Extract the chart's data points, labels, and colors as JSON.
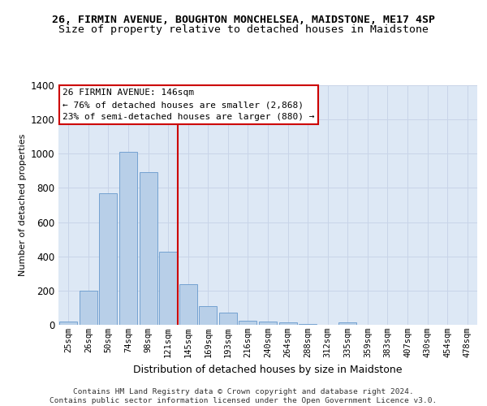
{
  "title": "26, FIRMIN AVENUE, BOUGHTON MONCHELSEA, MAIDSTONE, ME17 4SP",
  "subtitle": "Size of property relative to detached houses in Maidstone",
  "xlabel": "Distribution of detached houses by size in Maidstone",
  "ylabel": "Number of detached properties",
  "bar_color": "#b8cfe8",
  "bar_edge_color": "#6699cc",
  "background_color": "#dde8f5",
  "categories": [
    "25sqm",
    "26sqm",
    "50sqm",
    "74sqm",
    "98sqm",
    "121sqm",
    "145sqm",
    "169sqm",
    "193sqm",
    "216sqm",
    "240sqm",
    "264sqm",
    "288sqm",
    "312sqm",
    "335sqm",
    "359sqm",
    "383sqm",
    "407sqm",
    "430sqm",
    "454sqm",
    "478sqm"
  ],
  "values": [
    20,
    200,
    770,
    1010,
    890,
    425,
    235,
    110,
    70,
    25,
    20,
    15,
    5,
    0,
    15,
    0,
    0,
    0,
    0,
    0,
    0
  ],
  "pct_smaller": 76,
  "n_smaller": 2868,
  "pct_larger_semi": 23,
  "n_larger_semi": 880,
  "vline_x": 5.5,
  "ylim": [
    0,
    1400
  ],
  "annotation_box_color": "#ffffff",
  "annotation_box_edge": "#cc0000",
  "vline_color": "#cc0000",
  "footer_text": "Contains HM Land Registry data © Crown copyright and database right 2024.\nContains public sector information licensed under the Open Government Licence v3.0.",
  "grid_color": "#c8d4e8",
  "title_fontsize": 9.5,
  "subtitle_fontsize": 9.5,
  "xlabel_fontsize": 9,
  "ylabel_fontsize": 8,
  "tick_fontsize": 7.5,
  "annotation_fontsize": 8,
  "footer_fontsize": 6.8
}
